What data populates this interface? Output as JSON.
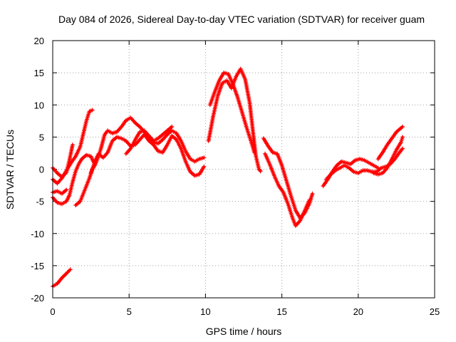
{
  "chart_data": {
    "type": "scatter",
    "title": "Day 084 of 2026, Sidereal Day-to-day VTEC variation (SDTVAR) for receiver guam",
    "xlabel": "GPS time / hours",
    "ylabel": "SDTVAR / TECUs",
    "xlim": [
      0,
      25
    ],
    "ylim": [
      -20,
      20
    ],
    "xticks": [
      0,
      5,
      10,
      15,
      20,
      25
    ],
    "yticks": [
      -20,
      -15,
      -10,
      -5,
      0,
      5,
      10,
      15,
      20
    ],
    "grid": true,
    "marker": "+",
    "color": "#ff0000",
    "series": [
      {
        "name": "track-1",
        "points": [
          [
            0.0,
            -18.2
          ],
          [
            0.3,
            -17.8
          ],
          [
            0.6,
            -16.9
          ],
          [
            0.9,
            -16.2
          ],
          [
            1.15,
            -15.6
          ]
        ]
      },
      {
        "name": "track-2",
        "points": [
          [
            0.0,
            0.2
          ],
          [
            0.3,
            -0.6
          ],
          [
            0.6,
            -1.2
          ],
          [
            0.9,
            -0.5
          ],
          [
            1.1,
            1.5
          ],
          [
            1.3,
            3.8
          ]
        ]
      },
      {
        "name": "track-3",
        "points": [
          [
            0.0,
            -1.6
          ],
          [
            0.3,
            -2.2
          ],
          [
            0.6,
            -1.4
          ],
          [
            0.9,
            -0.2
          ],
          [
            1.2,
            1.0
          ],
          [
            1.5,
            2.0
          ],
          [
            1.8,
            3.5
          ],
          [
            2.0,
            5.5
          ],
          [
            2.2,
            7.5
          ],
          [
            2.4,
            9.0
          ],
          [
            2.6,
            9.2
          ]
        ]
      },
      {
        "name": "track-4",
        "points": [
          [
            0.0,
            -4.4
          ],
          [
            0.3,
            -5.2
          ],
          [
            0.6,
            -5.4
          ],
          [
            0.9,
            -5.0
          ],
          [
            1.1,
            -4.0
          ],
          [
            1.3,
            -2.0
          ],
          [
            1.5,
            -0.3
          ],
          [
            1.7,
            0.8
          ],
          [
            1.9,
            1.6
          ],
          [
            2.2,
            2.2
          ],
          [
            2.5,
            2.0
          ],
          [
            2.7,
            1.0
          ]
        ]
      },
      {
        "name": "track-5",
        "points": [
          [
            0.0,
            -3.6
          ],
          [
            0.3,
            -3.4
          ],
          [
            0.6,
            -3.8
          ],
          [
            0.9,
            -3.2
          ]
        ]
      },
      {
        "name": "track-6",
        "points": [
          [
            1.5,
            -5.6
          ],
          [
            1.8,
            -5.0
          ],
          [
            2.0,
            -3.8
          ],
          [
            2.2,
            -2.6
          ],
          [
            2.4,
            -1.4
          ],
          [
            2.6,
            0.0
          ],
          [
            2.8,
            0.8
          ],
          [
            3.0,
            2.0
          ],
          [
            3.2,
            3.6
          ],
          [
            3.4,
            5.4
          ],
          [
            3.6,
            6.0
          ],
          [
            3.9,
            5.6
          ],
          [
            4.2,
            5.8
          ],
          [
            4.5,
            6.6
          ],
          [
            4.8,
            7.6
          ],
          [
            5.1,
            8.0
          ],
          [
            5.4,
            7.2
          ],
          [
            5.7,
            6.6
          ],
          [
            6.0,
            5.8
          ],
          [
            6.3,
            5.0
          ],
          [
            6.6,
            4.2
          ],
          [
            6.9,
            4.0
          ],
          [
            7.2,
            4.6
          ],
          [
            7.5,
            5.4
          ],
          [
            7.8,
            6.0
          ],
          [
            8.1,
            5.6
          ],
          [
            8.4,
            4.4
          ],
          [
            8.7,
            2.8
          ],
          [
            9.0,
            1.6
          ],
          [
            9.3,
            1.2
          ],
          [
            9.6,
            1.6
          ],
          [
            9.9,
            1.8
          ]
        ]
      },
      {
        "name": "track-7",
        "points": [
          [
            2.5,
            -0.6
          ],
          [
            2.8,
            1.4
          ],
          [
            3.0,
            2.4
          ],
          [
            3.3,
            1.8
          ],
          [
            3.6,
            2.6
          ],
          [
            3.9,
            4.4
          ],
          [
            4.2,
            5.0
          ],
          [
            4.5,
            4.8
          ],
          [
            4.8,
            4.4
          ],
          [
            5.1,
            3.6
          ],
          [
            5.4,
            3.8
          ],
          [
            5.7,
            4.6
          ],
          [
            6.0,
            5.4
          ],
          [
            6.3,
            4.4
          ],
          [
            6.6,
            3.8
          ],
          [
            6.9,
            2.8
          ],
          [
            7.2,
            2.6
          ],
          [
            7.5,
            3.8
          ],
          [
            7.8,
            5.2
          ],
          [
            8.1,
            4.6
          ],
          [
            8.4,
            3.2
          ],
          [
            8.7,
            1.2
          ],
          [
            9.0,
            -0.4
          ],
          [
            9.3,
            -1.0
          ],
          [
            9.6,
            -0.8
          ],
          [
            9.9,
            0.4
          ]
        ]
      },
      {
        "name": "track-8",
        "points": [
          [
            4.8,
            2.4
          ],
          [
            5.1,
            3.2
          ],
          [
            5.4,
            4.6
          ],
          [
            5.7,
            5.8
          ],
          [
            6.0,
            6.0
          ],
          [
            6.3,
            5.2
          ],
          [
            6.6,
            4.4
          ],
          [
            6.9,
            4.8
          ],
          [
            7.2,
            5.4
          ],
          [
            7.5,
            6.0
          ],
          [
            7.8,
            6.6
          ]
        ]
      },
      {
        "name": "track-9",
        "points": [
          [
            10.3,
            10.0
          ],
          [
            10.6,
            12.0
          ],
          [
            10.9,
            13.8
          ],
          [
            11.2,
            15.0
          ],
          [
            11.5,
            14.8
          ],
          [
            11.8,
            13.2
          ],
          [
            12.1,
            11.2
          ],
          [
            12.4,
            8.8
          ],
          [
            12.7,
            6.4
          ],
          [
            13.0,
            4.2
          ],
          [
            13.2,
            2.6
          ]
        ]
      },
      {
        "name": "track-10",
        "points": [
          [
            10.2,
            4.4
          ],
          [
            10.5,
            8.2
          ],
          [
            10.8,
            11.4
          ],
          [
            11.1,
            13.4
          ],
          [
            11.4,
            13.8
          ],
          [
            11.7,
            12.6
          ],
          [
            12.0,
            14.4
          ],
          [
            12.3,
            15.6
          ],
          [
            12.6,
            14.0
          ],
          [
            12.9,
            10.2
          ],
          [
            13.1,
            6.0
          ],
          [
            13.3,
            2.0
          ],
          [
            13.5,
            0.0
          ],
          [
            13.6,
            -0.3
          ]
        ]
      },
      {
        "name": "track-11",
        "points": [
          [
            13.8,
            4.8
          ],
          [
            14.1,
            3.6
          ],
          [
            14.4,
            2.6
          ],
          [
            14.7,
            2.4
          ],
          [
            15.0,
            0.6
          ],
          [
            15.3,
            -1.8
          ],
          [
            15.6,
            -4.2
          ],
          [
            15.9,
            -6.4
          ],
          [
            16.2,
            -7.6
          ],
          [
            16.5,
            -6.8
          ],
          [
            16.8,
            -5.4
          ],
          [
            17.0,
            -3.8
          ]
        ]
      },
      {
        "name": "track-12",
        "points": [
          [
            13.9,
            2.4
          ],
          [
            14.2,
            0.8
          ],
          [
            14.5,
            -1.0
          ],
          [
            14.8,
            -2.6
          ],
          [
            15.1,
            -3.6
          ],
          [
            15.4,
            -5.4
          ],
          [
            15.7,
            -7.6
          ],
          [
            15.9,
            -8.8
          ],
          [
            16.2,
            -8.0
          ],
          [
            16.5,
            -6.4
          ],
          [
            16.8,
            -4.8
          ]
        ]
      },
      {
        "name": "track-13",
        "points": [
          [
            17.7,
            -2.6
          ],
          [
            18.0,
            -1.6
          ],
          [
            18.3,
            -0.4
          ],
          [
            18.6,
            0.6
          ],
          [
            18.9,
            1.2
          ],
          [
            19.2,
            1.0
          ],
          [
            19.5,
            0.8
          ],
          [
            19.8,
            1.4
          ],
          [
            20.1,
            1.6
          ],
          [
            20.4,
            1.4
          ],
          [
            20.7,
            1.0
          ],
          [
            21.0,
            0.6
          ],
          [
            21.3,
            0.2
          ]
        ]
      },
      {
        "name": "track-14",
        "points": [
          [
            17.9,
            -1.6
          ],
          [
            18.2,
            -0.8
          ],
          [
            18.5,
            -0.2
          ],
          [
            18.8,
            0.2
          ],
          [
            19.1,
            0.6
          ],
          [
            19.4,
            0.2
          ],
          [
            19.7,
            -0.4
          ],
          [
            20.0,
            -0.6
          ],
          [
            20.3,
            -0.2
          ],
          [
            20.6,
            -0.2
          ],
          [
            20.9,
            -0.4
          ],
          [
            21.2,
            -0.4
          ],
          [
            21.5,
            0.2
          ],
          [
            21.8,
            0.4
          ],
          [
            22.1,
            0.8
          ],
          [
            22.4,
            1.6
          ],
          [
            22.7,
            2.6
          ],
          [
            22.9,
            3.2
          ]
        ]
      },
      {
        "name": "track-15",
        "points": [
          [
            21.0,
            -0.6
          ],
          [
            21.3,
            -0.8
          ],
          [
            21.6,
            -0.6
          ],
          [
            21.9,
            0.2
          ],
          [
            22.2,
            1.6
          ],
          [
            22.5,
            3.0
          ],
          [
            22.8,
            4.2
          ],
          [
            22.9,
            5.0
          ]
        ]
      },
      {
        "name": "track-16",
        "points": [
          [
            21.3,
            1.6
          ],
          [
            21.6,
            2.6
          ],
          [
            21.9,
            3.8
          ],
          [
            22.2,
            4.8
          ],
          [
            22.5,
            5.8
          ],
          [
            22.9,
            6.6
          ]
        ]
      }
    ]
  }
}
